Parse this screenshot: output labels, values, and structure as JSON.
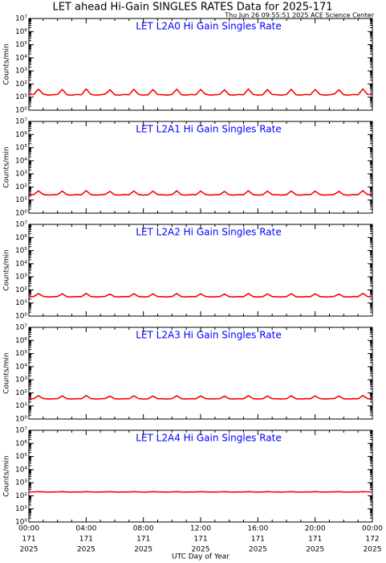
{
  "title": "LET ahead Hi-Gain SINGLES RATES Data for 2025-171",
  "timestamp": "Thu Jun 26 09:55:51 2025 ACE Science Center",
  "chart_data": [
    {
      "type": "line",
      "title": "LET L2A0 Hi Gain Singles Rate",
      "title_color": "#0000ff",
      "ylabel": "Counts/min",
      "log": true,
      "color": "#ff0000",
      "x": [
        0,
        20,
        40,
        60,
        80,
        100,
        120,
        140,
        160,
        180,
        200,
        220,
        240,
        260,
        280,
        300,
        320,
        340,
        360,
        380,
        400,
        420,
        440,
        460,
        480,
        500,
        520,
        540,
        560,
        580,
        600,
        620,
        640,
        660,
        680,
        700,
        720,
        740,
        760,
        780,
        800,
        820,
        840,
        860,
        880,
        900,
        920,
        940,
        960,
        980,
        1000,
        1020,
        1040,
        1060,
        1080,
        1100,
        1120,
        1140,
        1160,
        1180,
        1200,
        1220,
        1240,
        1260,
        1280,
        1300,
        1320,
        1340,
        1360,
        1380,
        1400,
        1420,
        1440
      ],
      "values": [
        15,
        16,
        40,
        17,
        14,
        15,
        16,
        38,
        15,
        14,
        16,
        15,
        42,
        16,
        14,
        15,
        17,
        36,
        15,
        14,
        16,
        15,
        39,
        16,
        14,
        15,
        37,
        16,
        15,
        14,
        16,
        40,
        15,
        14,
        16,
        15,
        38,
        17,
        14,
        15,
        16,
        36,
        15,
        14,
        16,
        15,
        41,
        16,
        14,
        15,
        37,
        16,
        15,
        14,
        16,
        39,
        15,
        14,
        16,
        15,
        38,
        16,
        14,
        15,
        17,
        36,
        15,
        14,
        16,
        15,
        42,
        16,
        15
      ],
      "xlim": [
        0,
        1440
      ],
      "xticks": [
        0,
        240,
        480,
        720,
        960,
        1200,
        1440
      ],
      "ylim": [
        1,
        10000000
      ],
      "yticks": [
        {
          "value": 1,
          "label": "10⁰"
        },
        {
          "value": 10,
          "label": "10¹"
        },
        {
          "value": 100,
          "label": "10²"
        },
        {
          "value": 1000,
          "label": "10³"
        },
        {
          "value": 10000,
          "label": "10⁴"
        },
        {
          "value": 100000,
          "label": "10⁵"
        },
        {
          "value": 1000000,
          "label": "10⁶"
        },
        {
          "value": 10000000,
          "label": "10⁷"
        }
      ]
    },
    {
      "type": "line",
      "title": "LET L2A1 Hi Gain Singles Rate",
      "title_color": "#0000ff",
      "ylabel": "Counts/min",
      "log": true,
      "color": "#ff0000",
      "x": [
        0,
        20,
        40,
        60,
        80,
        100,
        120,
        140,
        160,
        180,
        200,
        220,
        240,
        260,
        280,
        300,
        320,
        340,
        360,
        380,
        400,
        420,
        440,
        460,
        480,
        500,
        520,
        540,
        560,
        580,
        600,
        620,
        640,
        660,
        680,
        700,
        720,
        740,
        760,
        780,
        800,
        820,
        840,
        860,
        880,
        900,
        920,
        940,
        960,
        980,
        1000,
        1020,
        1040,
        1060,
        1080,
        1100,
        1120,
        1140,
        1160,
        1180,
        1200,
        1220,
        1240,
        1260,
        1280,
        1300,
        1320,
        1340,
        1360,
        1380,
        1400,
        1420,
        1440
      ],
      "values": [
        25,
        26,
        50,
        27,
        24,
        25,
        26,
        48,
        25,
        24,
        26,
        25,
        52,
        26,
        24,
        25,
        27,
        46,
        25,
        24,
        26,
        25,
        49,
        26,
        24,
        25,
        47,
        26,
        25,
        24,
        26,
        50,
        25,
        24,
        26,
        25,
        48,
        27,
        24,
        25,
        26,
        46,
        25,
        24,
        26,
        25,
        51,
        26,
        24,
        25,
        47,
        26,
        25,
        24,
        26,
        49,
        25,
        24,
        26,
        25,
        48,
        26,
        24,
        25,
        27,
        46,
        25,
        24,
        26,
        25,
        52,
        26,
        25
      ],
      "xlim": [
        0,
        1440
      ],
      "xticks": [
        0,
        240,
        480,
        720,
        960,
        1200,
        1440
      ],
      "ylim": [
        1,
        10000000
      ],
      "yticks": [
        {
          "value": 1,
          "label": "10⁰"
        },
        {
          "value": 10,
          "label": "10¹"
        },
        {
          "value": 100,
          "label": "10²"
        },
        {
          "value": 1000,
          "label": "10³"
        },
        {
          "value": 10000,
          "label": "10⁴"
        },
        {
          "value": 100000,
          "label": "10⁵"
        },
        {
          "value": 1000000,
          "label": "10⁶"
        },
        {
          "value": 10000000,
          "label": "10⁷"
        }
      ]
    },
    {
      "type": "line",
      "title": "LET L2A2 Hi Gain Singles Rate",
      "title_color": "#0000ff",
      "ylabel": "Counts/min",
      "log": true,
      "color": "#ff0000",
      "x": [
        0,
        20,
        40,
        60,
        80,
        100,
        120,
        140,
        160,
        180,
        200,
        220,
        240,
        260,
        280,
        300,
        320,
        340,
        360,
        380,
        400,
        420,
        440,
        460,
        480,
        500,
        520,
        540,
        560,
        580,
        600,
        620,
        640,
        660,
        680,
        700,
        720,
        740,
        760,
        780,
        800,
        820,
        840,
        860,
        880,
        900,
        920,
        940,
        960,
        980,
        1000,
        1020,
        1040,
        1060,
        1080,
        1100,
        1120,
        1140,
        1160,
        1180,
        1200,
        1220,
        1240,
        1260,
        1280,
        1300,
        1320,
        1340,
        1360,
        1380,
        1400,
        1420,
        1440
      ],
      "values": [
        30,
        31,
        52,
        32,
        29,
        30,
        31,
        50,
        30,
        29,
        31,
        30,
        54,
        31,
        29,
        30,
        32,
        48,
        30,
        29,
        31,
        30,
        51,
        31,
        29,
        30,
        49,
        31,
        30,
        29,
        31,
        52,
        30,
        29,
        31,
        30,
        50,
        32,
        29,
        30,
        31,
        48,
        30,
        29,
        31,
        30,
        53,
        31,
        29,
        30,
        49,
        31,
        30,
        29,
        31,
        51,
        30,
        29,
        31,
        30,
        50,
        31,
        29,
        30,
        32,
        48,
        30,
        29,
        31,
        30,
        54,
        31,
        30
      ],
      "xlim": [
        0,
        1440
      ],
      "xticks": [
        0,
        240,
        480,
        720,
        960,
        1200,
        1440
      ],
      "ylim": [
        1,
        10000000
      ],
      "yticks": [
        {
          "value": 1,
          "label": "10⁰"
        },
        {
          "value": 10,
          "label": "10¹"
        },
        {
          "value": 100,
          "label": "10²"
        },
        {
          "value": 1000,
          "label": "10³"
        },
        {
          "value": 10000,
          "label": "10⁴"
        },
        {
          "value": 100000,
          "label": "10⁵"
        },
        {
          "value": 1000000,
          "label": "10⁶"
        },
        {
          "value": 10000000,
          "label": "10⁷"
        }
      ]
    },
    {
      "type": "line",
      "title": "LET L2A3 Hi Gain Singles Rate",
      "title_color": "#0000ff",
      "ylabel": "Counts/min",
      "log": true,
      "color": "#ff0000",
      "x": [
        0,
        20,
        40,
        60,
        80,
        100,
        120,
        140,
        160,
        180,
        200,
        220,
        240,
        260,
        280,
        300,
        320,
        340,
        360,
        380,
        400,
        420,
        440,
        460,
        480,
        500,
        520,
        540,
        560,
        580,
        600,
        620,
        640,
        660,
        680,
        700,
        720,
        740,
        760,
        780,
        800,
        820,
        840,
        860,
        880,
        900,
        920,
        940,
        960,
        980,
        1000,
        1020,
        1040,
        1060,
        1080,
        1100,
        1120,
        1140,
        1160,
        1180,
        1200,
        1220,
        1240,
        1260,
        1280,
        1300,
        1320,
        1340,
        1360,
        1380,
        1400,
        1420,
        1440
      ],
      "values": [
        35,
        36,
        60,
        37,
        34,
        35,
        36,
        58,
        35,
        34,
        36,
        35,
        62,
        36,
        34,
        35,
        37,
        56,
        35,
        34,
        36,
        35,
        59,
        36,
        34,
        35,
        57,
        36,
        35,
        34,
        36,
        60,
        35,
        34,
        36,
        35,
        58,
        37,
        34,
        35,
        36,
        56,
        35,
        34,
        36,
        35,
        61,
        36,
        34,
        35,
        57,
        36,
        35,
        34,
        36,
        59,
        35,
        34,
        36,
        35,
        58,
        36,
        34,
        35,
        37,
        56,
        35,
        34,
        36,
        35,
        62,
        36,
        35
      ],
      "xlim": [
        0,
        1440
      ],
      "xticks": [
        0,
        240,
        480,
        720,
        960,
        1200,
        1440
      ],
      "ylim": [
        1,
        10000000
      ],
      "yticks": [
        {
          "value": 1,
          "label": "10⁰"
        },
        {
          "value": 10,
          "label": "10¹"
        },
        {
          "value": 100,
          "label": "10²"
        },
        {
          "value": 1000,
          "label": "10³"
        },
        {
          "value": 10000,
          "label": "10⁴"
        },
        {
          "value": 100000,
          "label": "10⁵"
        },
        {
          "value": 1000000,
          "label": "10⁶"
        },
        {
          "value": 10000000,
          "label": "10⁷"
        }
      ]
    },
    {
      "type": "line",
      "title": "LET L2A4 Hi Gain Singles Rate",
      "title_color": "#0000ff",
      "ylabel": "Counts/min",
      "log": true,
      "color": "#ff0000",
      "x": [
        0,
        20,
        40,
        60,
        80,
        100,
        120,
        140,
        160,
        180,
        200,
        220,
        240,
        260,
        280,
        300,
        320,
        340,
        360,
        380,
        400,
        420,
        440,
        460,
        480,
        500,
        520,
        540,
        560,
        580,
        600,
        620,
        640,
        660,
        680,
        700,
        720,
        740,
        760,
        780,
        800,
        820,
        840,
        860,
        880,
        900,
        920,
        940,
        960,
        980,
        1000,
        1020,
        1040,
        1060,
        1080,
        1100,
        1120,
        1140,
        1160,
        1180,
        1200,
        1220,
        1240,
        1260,
        1280,
        1300,
        1320,
        1340,
        1360,
        1380,
        1400,
        1420,
        1440
      ],
      "values": [
        195,
        197,
        205,
        199,
        193,
        195,
        197,
        205,
        195,
        193,
        197,
        195,
        205,
        197,
        193,
        195,
        199,
        205,
        195,
        193,
        197,
        195,
        205,
        197,
        193,
        195,
        205,
        197,
        195,
        193,
        197,
        205,
        195,
        193,
        197,
        195,
        205,
        199,
        193,
        195,
        197,
        205,
        195,
        193,
        197,
        195,
        205,
        197,
        193,
        195,
        205,
        197,
        195,
        193,
        197,
        205,
        195,
        193,
        197,
        195,
        205,
        197,
        193,
        195,
        199,
        205,
        195,
        193,
        197,
        195,
        205,
        197,
        195
      ],
      "xlim": [
        0,
        1440
      ],
      "xticks": [
        {
          "value": 0,
          "label": "00:00",
          "day": "171",
          "year": "2025"
        },
        {
          "value": 240,
          "label": "04:00",
          "day": "171",
          "year": "2025"
        },
        {
          "value": 480,
          "label": "08:00",
          "day": "171",
          "year": "2025"
        },
        {
          "value": 720,
          "label": "12:00",
          "day": "171",
          "year": "2025"
        },
        {
          "value": 960,
          "label": "16:00",
          "day": "171",
          "year": "2025"
        },
        {
          "value": 1200,
          "label": "20:00",
          "day": "171",
          "year": "2025"
        },
        {
          "value": 1440,
          "label": "00:00",
          "day": "172",
          "year": "2025"
        }
      ],
      "xlabel": "UTC Day of Year",
      "ylim": [
        1,
        10000000
      ],
      "yticks": [
        {
          "value": 1,
          "label": "10⁰"
        },
        {
          "value": 10,
          "label": "10¹"
        },
        {
          "value": 100,
          "label": "10²"
        },
        {
          "value": 1000,
          "label": "10³"
        },
        {
          "value": 10000,
          "label": "10⁴"
        },
        {
          "value": 100000,
          "label": "10⁵"
        },
        {
          "value": 1000000,
          "label": "10⁶"
        },
        {
          "value": 10000000,
          "label": "10⁷"
        }
      ]
    }
  ]
}
